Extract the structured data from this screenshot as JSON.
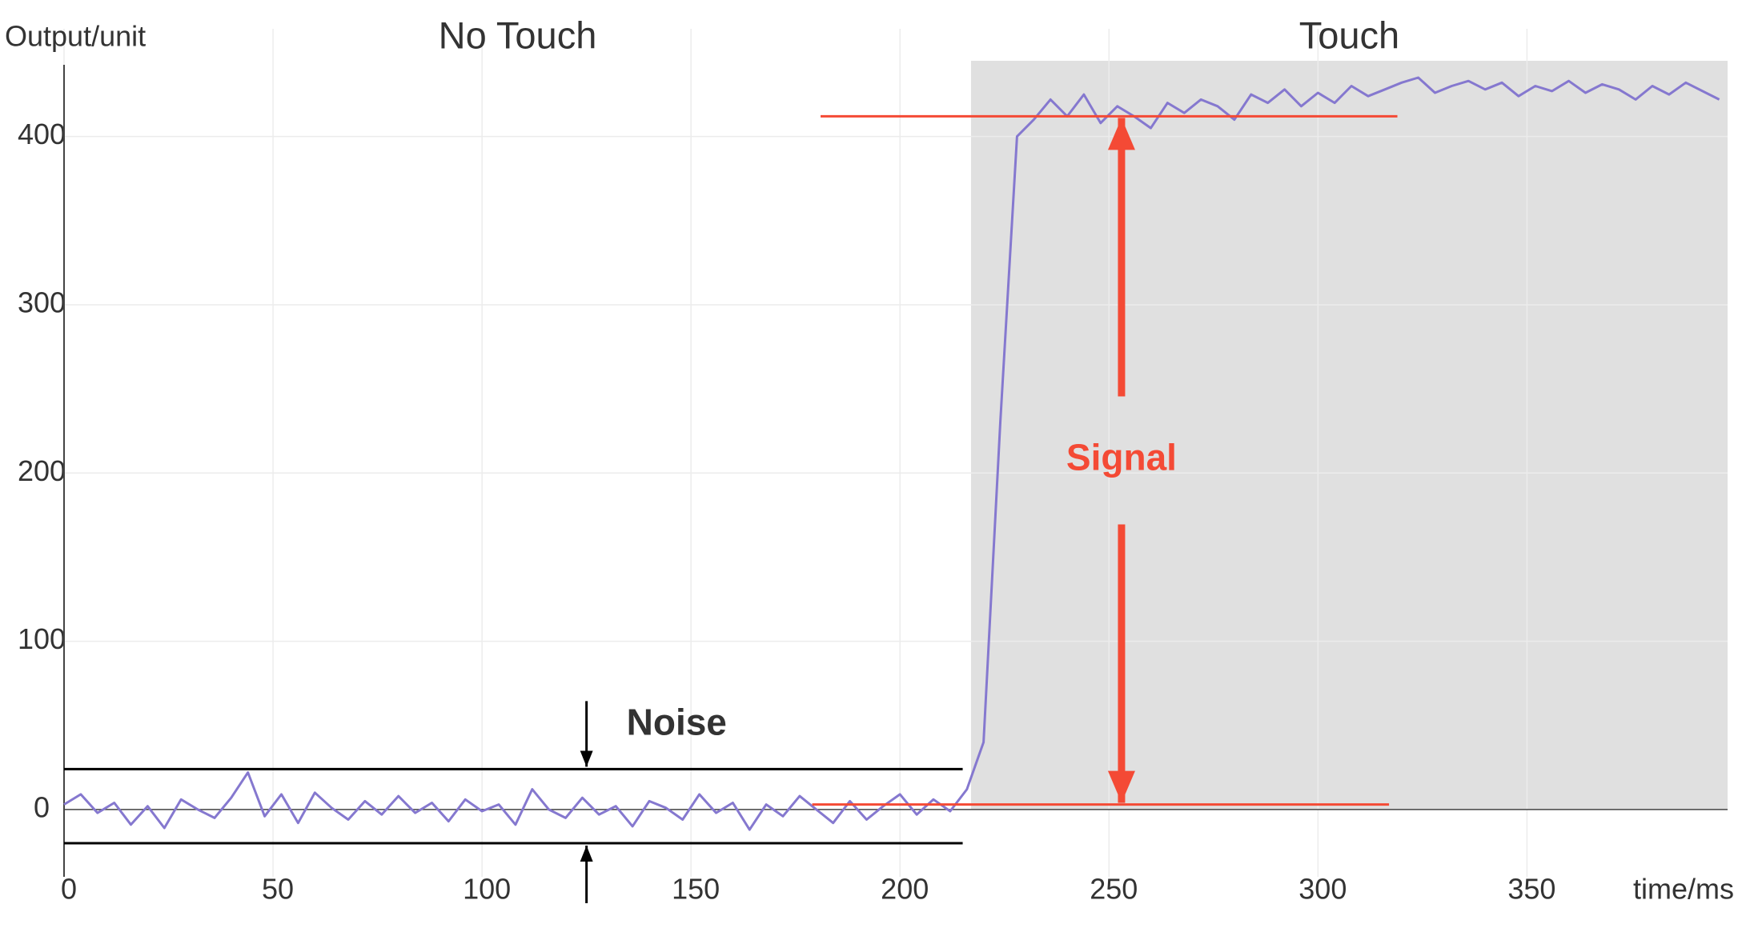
{
  "chart_data": {
    "type": "line",
    "title_left": "No Touch",
    "title_right": "Touch",
    "ylabel": "Output/unit",
    "xlabel": "time/ms",
    "x": [
      0,
      4,
      8,
      12,
      16,
      20,
      24,
      28,
      32,
      36,
      40,
      44,
      48,
      52,
      56,
      60,
      64,
      68,
      72,
      76,
      80,
      84,
      88,
      92,
      96,
      100,
      104,
      108,
      112,
      116,
      120,
      124,
      128,
      132,
      136,
      140,
      144,
      148,
      152,
      156,
      160,
      164,
      168,
      172,
      176,
      180,
      184,
      188,
      192,
      196,
      200,
      204,
      208,
      212,
      216,
      220,
      224,
      228,
      232,
      236,
      240,
      244,
      248,
      252,
      256,
      260,
      264,
      268,
      272,
      276,
      280,
      284,
      288,
      292,
      296,
      300,
      304,
      308,
      312,
      316,
      320,
      324,
      328,
      332,
      336,
      340,
      344,
      348,
      352,
      356,
      360,
      364,
      368,
      372,
      376,
      380,
      384,
      388,
      392,
      396
    ],
    "series": [
      {
        "color": "#8578cf",
        "values": [
          3,
          9,
          -2,
          4,
          -9,
          2,
          -11,
          6,
          0,
          -5,
          7,
          22,
          -4,
          9,
          -8,
          10,
          1,
          -6,
          5,
          -3,
          8,
          -2,
          4,
          -7,
          6,
          -1,
          3,
          -9,
          12,
          0,
          -5,
          7,
          -3,
          2,
          -10,
          5,
          1,
          -6,
          9,
          -2,
          4,
          -12,
          3,
          -4,
          8,
          0,
          -8,
          5,
          -6,
          2,
          9,
          -3,
          6,
          -1,
          12,
          40,
          230,
          400,
          410,
          422,
          412,
          425,
          408,
          418,
          412,
          405,
          420,
          414,
          422,
          418,
          410,
          425,
          420,
          428,
          418,
          426,
          420,
          430,
          424,
          428,
          432,
          435,
          426,
          430,
          433,
          428,
          432,
          424,
          430,
          427,
          433,
          426,
          431,
          428,
          422,
          430,
          425,
          432,
          427,
          422
        ]
      }
    ],
    "xlim": [
      0,
      398
    ],
    "ylim": [
      -40,
      445
    ],
    "xticks": [
      0,
      50,
      100,
      150,
      200,
      250,
      300,
      350
    ],
    "yticks": [
      0,
      100,
      200,
      300,
      400
    ],
    "grid": true,
    "touch_region": {
      "x": [
        217,
        398
      ],
      "color": "#e0e0e0"
    },
    "noise": {
      "label": "Noise",
      "low": -20,
      "high": 24,
      "x_end": 215,
      "arrow_x": 125,
      "color": "#000000"
    },
    "signal": {
      "label": "Signal",
      "low": 3,
      "high": 412,
      "arrow_x": 253,
      "low_line": [
        179,
        317
      ],
      "high_line": [
        181,
        319
      ],
      "color": "#f44a35"
    }
  }
}
